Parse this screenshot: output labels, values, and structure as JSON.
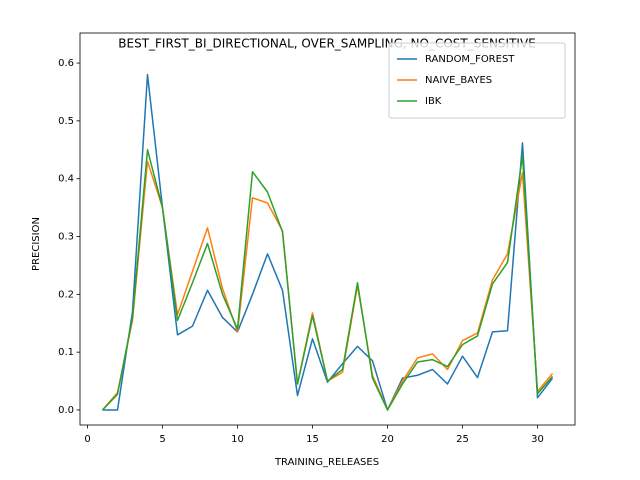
{
  "chart_data": {
    "type": "line",
    "title": "BEST_FIRST_BI_DIRECTIONAL, OVER_SAMPLING, NO_COST_SENSITIVE",
    "x_label": "TRAINING_RELEASES",
    "y_label": "PRECISION",
    "x": [
      1,
      2,
      3,
      4,
      5,
      6,
      7,
      8,
      9,
      10,
      11,
      12,
      13,
      14,
      15,
      16,
      17,
      18,
      19,
      20,
      21,
      22,
      23,
      24,
      25,
      26,
      27,
      28,
      29,
      30,
      31
    ],
    "series": [
      {
        "name": "RANDOM_FOREST",
        "color": "#1f77b4",
        "values": [
          0,
          0,
          0.17,
          0.58,
          0.35,
          0.13,
          0.145,
          0.207,
          0.16,
          0.135,
          0.2,
          0.27,
          0.207,
          0.025,
          0.123,
          0.048,
          0.08,
          0.11,
          0.085,
          0,
          0.055,
          0.06,
          0.07,
          0.045,
          0.093,
          0.056,
          0.135,
          0.137,
          0.462,
          0.021,
          0.055
        ]
      },
      {
        "name": "NAIVE_BAYES",
        "color": "#ff7f0e",
        "values": [
          0,
          0.03,
          0.155,
          0.43,
          0.35,
          0.165,
          0.24,
          0.315,
          0.21,
          0.135,
          0.367,
          0.358,
          0.31,
          0.045,
          0.168,
          0.05,
          0.065,
          0.215,
          0.06,
          0,
          0.05,
          0.09,
          0.097,
          0.07,
          0.12,
          0.133,
          0.225,
          0.27,
          0.41,
          0.032,
          0.063
        ]
      },
      {
        "name": "IBK",
        "color": "#2ca02c",
        "values": [
          0,
          0.027,
          0.16,
          0.45,
          0.35,
          0.155,
          0.22,
          0.288,
          0.2,
          0.14,
          0.412,
          0.377,
          0.308,
          0.045,
          0.163,
          0.05,
          0.07,
          0.22,
          0.055,
          0,
          0.045,
          0.083,
          0.087,
          0.075,
          0.113,
          0.128,
          0.218,
          0.255,
          0.44,
          0.028,
          0.058
        ]
      }
    ],
    "xlim": [
      -0.5,
      32.5
    ],
    "xticks": [
      0,
      5,
      10,
      15,
      20,
      25,
      30
    ],
    "ylim": [
      -0.026,
      0.652
    ],
    "yticks": [
      {
        "value": 0,
        "label": "0.0"
      },
      0.1,
      0.2,
      0.3,
      0.4,
      0.5,
      0.6
    ],
    "legend": "upper right"
  }
}
